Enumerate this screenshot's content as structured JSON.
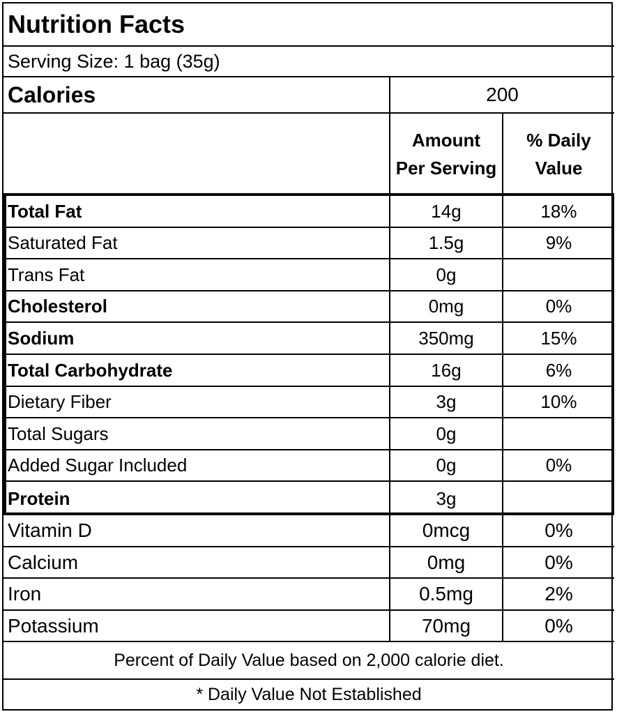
{
  "title": "Nutrition Facts",
  "serving_size": "Serving Size: 1 bag (35g)",
  "calories": {
    "label": "Calories",
    "value": "200"
  },
  "columns": {
    "amount_line1": "Amount",
    "amount_line2": "Per Serving",
    "dv_line1": "% Daily",
    "dv_line2": "Value"
  },
  "nutrients": [
    {
      "name": "Total Fat",
      "amount": "14g",
      "dv": "18%"
    },
    {
      "name": "Saturated Fat",
      "amount": "1.5g",
      "dv": "9%"
    },
    {
      "name": "Trans Fat",
      "amount": "0g",
      "dv": ""
    },
    {
      "name": "Cholesterol",
      "amount": "0mg",
      "dv": "0%"
    },
    {
      "name": "Sodium",
      "amount": "350mg",
      "dv": "15%"
    },
    {
      "name": "Total Carbohydrate",
      "amount": "16g",
      "dv": "6%"
    },
    {
      "name": "Dietary Fiber",
      "amount": "3g",
      "dv": "10%"
    },
    {
      "name": "Total Sugars",
      "amount": "0g",
      "dv": ""
    },
    {
      "name": "Added Sugar Included",
      "amount": "0g",
      "dv": "0%"
    },
    {
      "name": "Protein",
      "amount": "3g",
      "dv": ""
    }
  ],
  "vitamins": [
    {
      "name": "Vitamin D",
      "amount": "0mcg",
      "dv": "0%"
    },
    {
      "name": "Calcium",
      "amount": "0mg",
      "dv": "0%"
    },
    {
      "name": "Iron",
      "amount": "0.5mg",
      "dv": "2%"
    },
    {
      "name": "Potassium",
      "amount": "70mg",
      "dv": "0%"
    }
  ],
  "footer": {
    "daily_value_note": "Percent of Daily Value based on 2,000 calorie diet.",
    "not_established_note": "* Daily Value Not Established"
  }
}
